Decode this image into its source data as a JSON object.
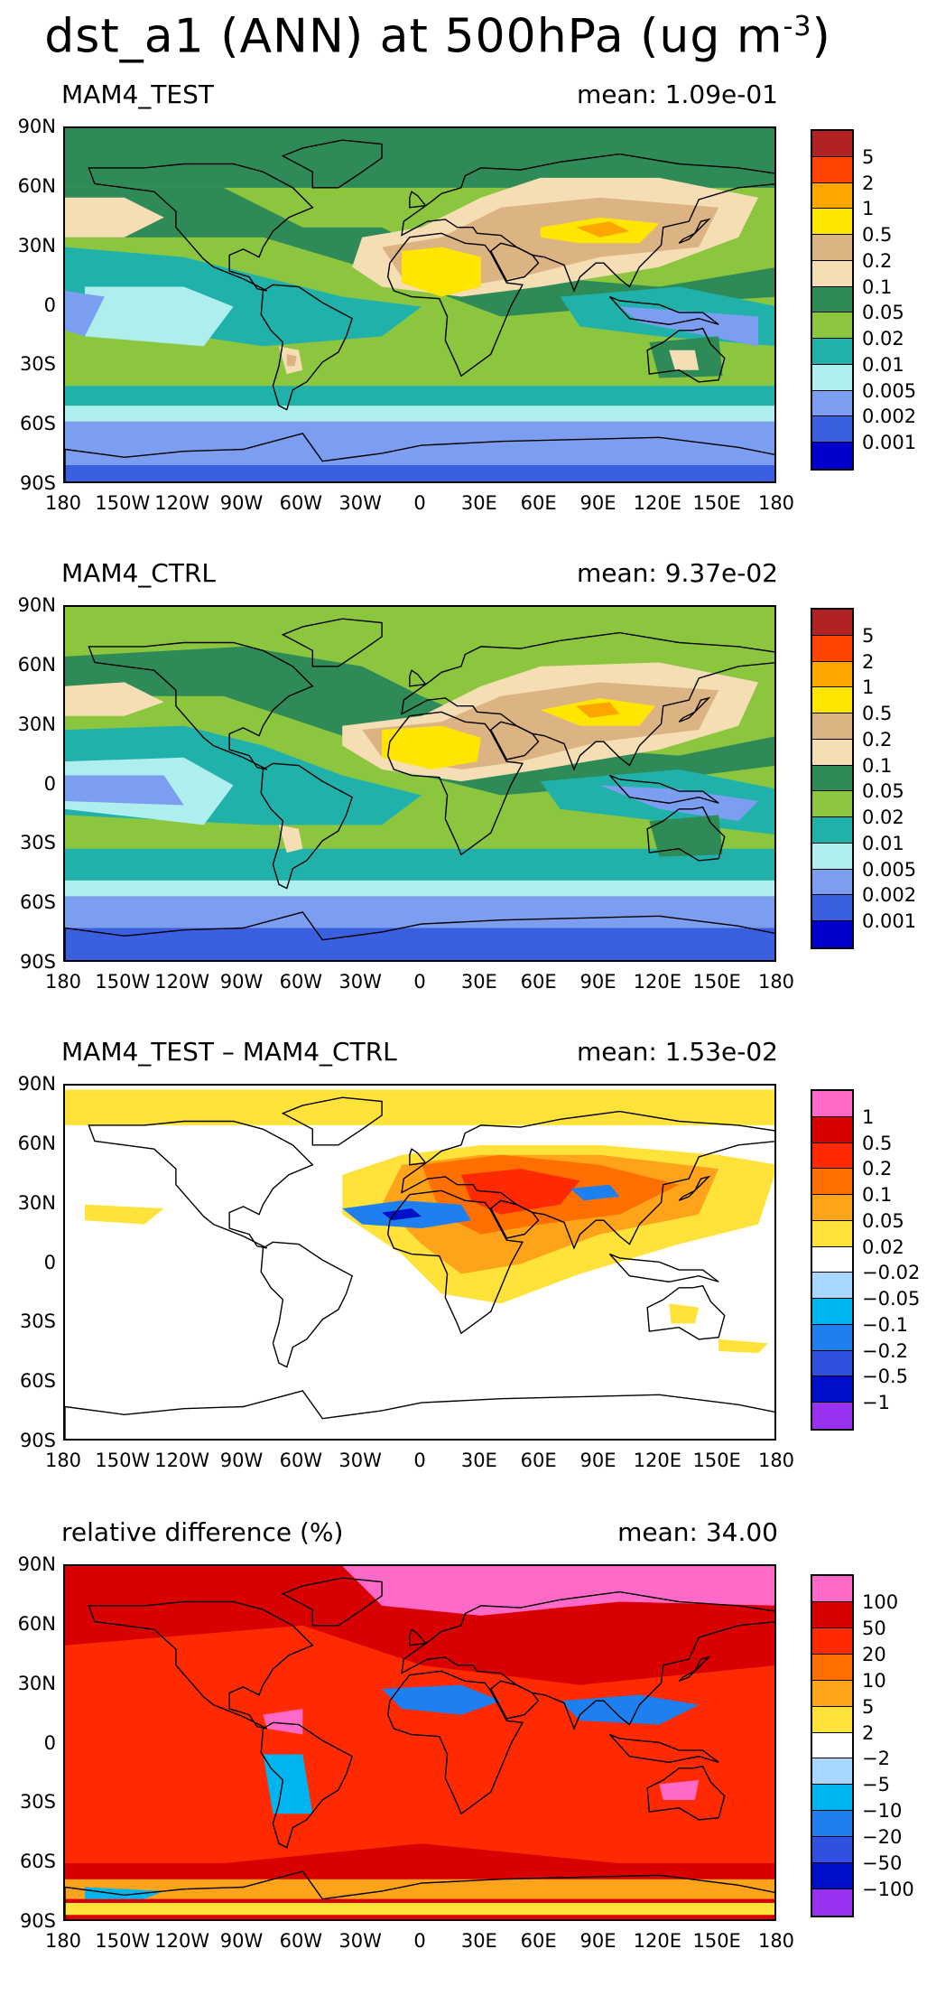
{
  "page": {
    "title": "dst_a1 (ANN) at 500hPa (ug m",
    "title_exp": "-3",
    "title_close": ")"
  },
  "axes": {
    "lat_labels": [
      "90N",
      "60N",
      "30N",
      "0",
      "30S",
      "60S",
      "90S"
    ],
    "lon_labels": [
      "180",
      "150W",
      "120W",
      "90W",
      "60W",
      "30W",
      "0",
      "30E",
      "60E",
      "90E",
      "120E",
      "150E",
      "180"
    ]
  },
  "panels": [
    {
      "id": "test",
      "title": "MAM4_TEST",
      "mean": "mean:  1.09e-01",
      "colorbar_colors": [
        "#b22222",
        "#ff4500",
        "#ffa500",
        "#ffe600",
        "#dcb484",
        "#f5deb3",
        "#2e8b57",
        "#8cc63f",
        "#20b2aa",
        "#afeeee",
        "#7b9ef0",
        "#3a5fe0",
        "#0000cd"
      ],
      "colorbar_labels": [
        "5",
        "2",
        "1",
        "0.5",
        "0.2",
        "0.1",
        "0.05",
        "0.02",
        "0.01",
        "0.005",
        "0.002",
        "0.001"
      ]
    },
    {
      "id": "ctrl",
      "title": "MAM4_CTRL",
      "mean": "mean:  9.37e-02",
      "colorbar_colors": [
        "#b22222",
        "#ff4500",
        "#ffa500",
        "#ffe600",
        "#dcb484",
        "#f5deb3",
        "#2e8b57",
        "#8cc63f",
        "#20b2aa",
        "#afeeee",
        "#7b9ef0",
        "#3a5fe0",
        "#0000cd"
      ],
      "colorbar_labels": [
        "5",
        "2",
        "1",
        "0.5",
        "0.2",
        "0.1",
        "0.05",
        "0.02",
        "0.01",
        "0.005",
        "0.002",
        "0.001"
      ]
    },
    {
      "id": "diff",
      "title": "MAM4_TEST  –  MAM4_CTRL",
      "mean": "mean:  1.53e-02",
      "colorbar_colors": [
        "#ff69c8",
        "#d80000",
        "#ff2a00",
        "#ff7000",
        "#ffa41a",
        "#ffe33a",
        "#ffffff",
        "#a8d8ff",
        "#00b4f0",
        "#1e7ff0",
        "#3050e0",
        "#0010c8",
        "#9a30f0"
      ],
      "colorbar_labels": [
        "1",
        "0.5",
        "0.2",
        "0.1",
        "0.05",
        "0.02",
        "−0.02",
        "−0.05",
        "−0.1",
        "−0.2",
        "−0.5",
        "−1"
      ]
    },
    {
      "id": "reldiff",
      "title": "relative difference (%)",
      "mean": "mean:  34.00",
      "colorbar_colors": [
        "#ff69c8",
        "#d80000",
        "#ff2a00",
        "#ff7000",
        "#ffa41a",
        "#ffe33a",
        "#ffffff",
        "#a8d8ff",
        "#00b4f0",
        "#1e7ff0",
        "#3050e0",
        "#0010c8",
        "#9a30f0"
      ],
      "colorbar_labels": [
        "100",
        "50",
        "20",
        "10",
        "5",
        "2",
        "−2",
        "−5",
        "−10",
        "−20",
        "−50",
        "−100"
      ]
    }
  ]
}
